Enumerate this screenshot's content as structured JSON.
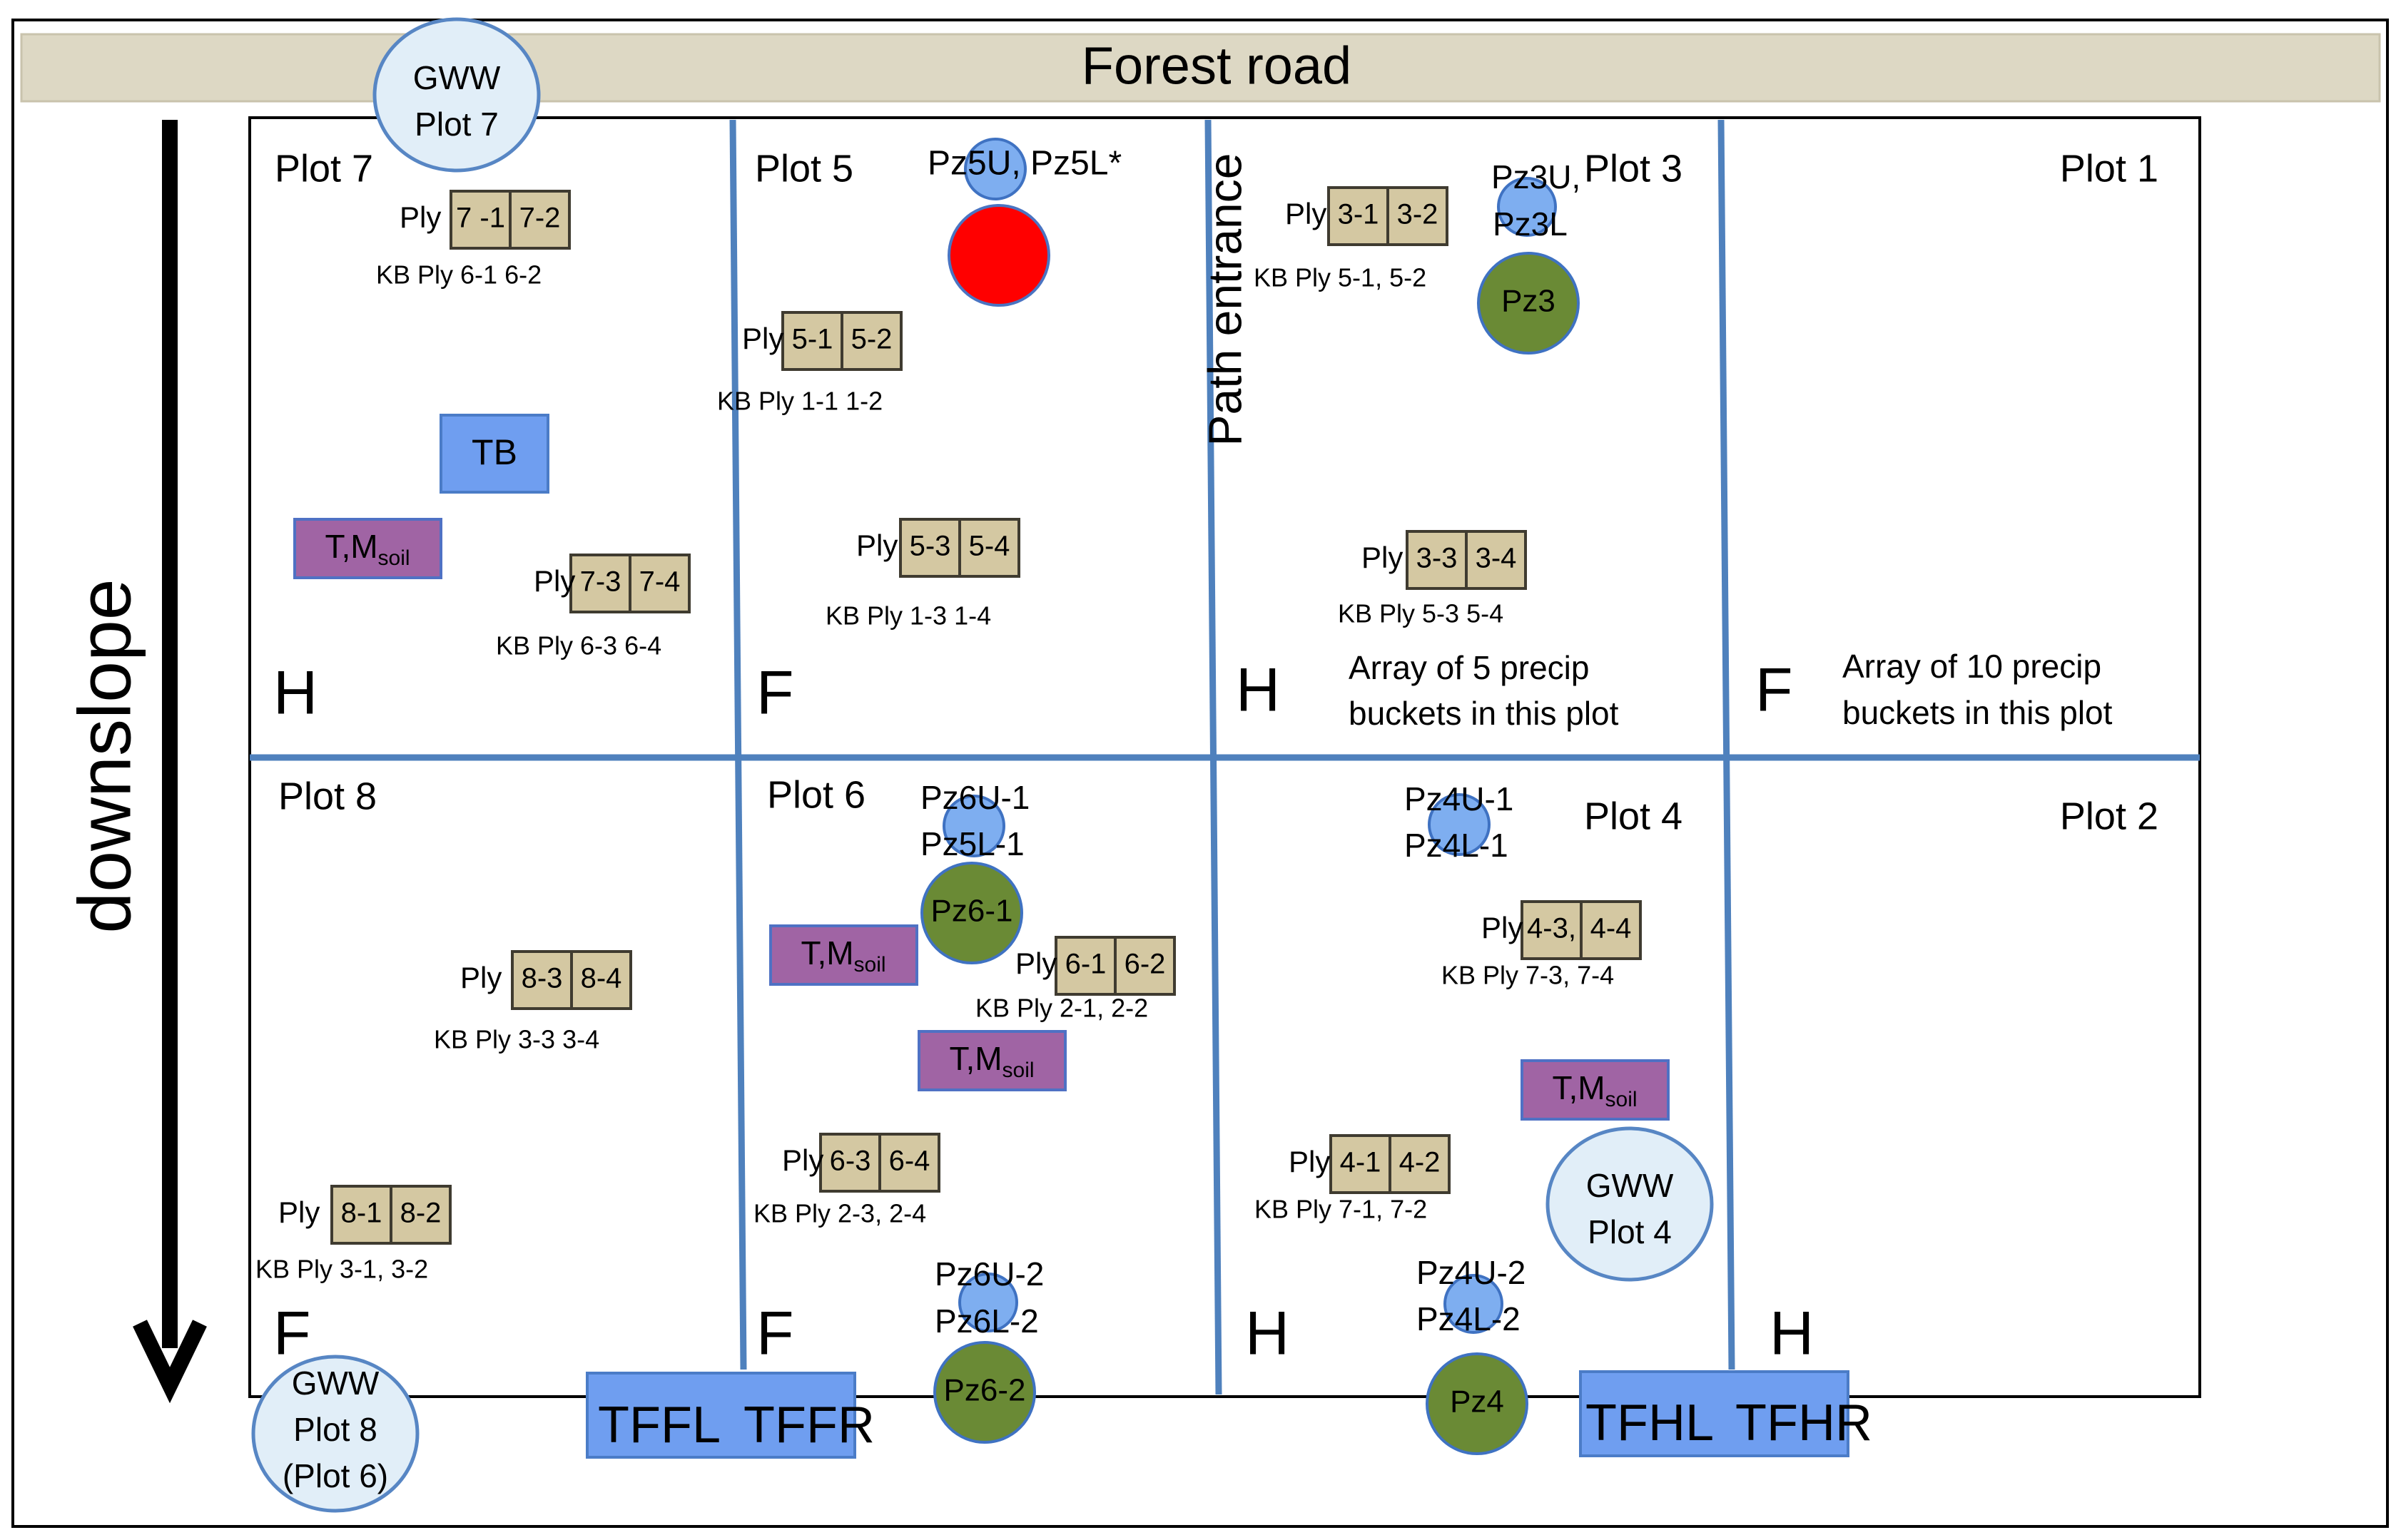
{
  "road": {
    "label": "Forest road"
  },
  "downslope_label": "downslope",
  "path_entrance_label": "Path entrance",
  "plots": {
    "plot7": {
      "title": "Plot 7",
      "type": "H"
    },
    "plot5": {
      "title": "Plot 5",
      "type": "F"
    },
    "plot3": {
      "title": "Plot 3",
      "type": "H",
      "note_line1": "Array of 5 precip",
      "note_line2": "buckets in this plot"
    },
    "plot1": {
      "title": "Plot 1",
      "type": "F",
      "note_line1": "Array of 10 precip",
      "note_line2": "buckets in this plot"
    },
    "plot8": {
      "title": "Plot 8",
      "type": "F"
    },
    "plot6": {
      "title": "Plot 6",
      "type": "F"
    },
    "plot4": {
      "title": "Plot 4",
      "type": "H"
    },
    "plot2": {
      "title": "Plot 2",
      "type": "H"
    }
  },
  "lysimeter_prefix": "Ply",
  "lysimeters": [
    {
      "cells": [
        "7 -1",
        "7-2"
      ],
      "kb": "KB Ply 6-1 6-2"
    },
    {
      "cells": [
        "7-3",
        "7-4"
      ],
      "kb": "KB Ply 6-3 6-4"
    },
    {
      "cells": [
        "5-1",
        "5-2"
      ],
      "kb": "KB Ply 1-1 1-2"
    },
    {
      "cells": [
        "5-3",
        "5-4"
      ],
      "kb": "KB Ply 1-3 1-4"
    },
    {
      "cells": [
        "3-1",
        "3-2"
      ],
      "kb": "KB Ply 5-1, 5-2"
    },
    {
      "cells": [
        "3-3",
        "3-4"
      ],
      "kb": "KB Ply 5-3 5-4"
    },
    {
      "cells": [
        "8-3",
        "8-4"
      ],
      "kb": "KB Ply 3-3  3-4"
    },
    {
      "cells": [
        "8-1",
        "8-2"
      ],
      "kb": "KB Ply 3-1, 3-2"
    },
    {
      "cells": [
        "6-1",
        "6-2"
      ],
      "kb": "KB Ply 2-1, 2-2"
    },
    {
      "cells": [
        "6-3",
        "6-4"
      ],
      "kb": "KB Ply 2-3, 2-4"
    },
    {
      "cells": [
        "4-3,",
        "4-4"
      ],
      "kb": "KB Ply 7-3, 7-4"
    },
    {
      "cells": [
        "4-1",
        "4-2"
      ],
      "kb": "KB Ply 7-1, 7-2"
    }
  ],
  "piezometers": {
    "pz5": {
      "label": "Pz5U, Pz5L*"
    },
    "pz3": {
      "line1": "Pz3U,",
      "line2": "Pz3L",
      "big": "Pz3"
    },
    "pz6_1": {
      "line1": "Pz6U-1",
      "line2": "Pz5L-1",
      "big": "Pz6-1"
    },
    "pz4_1": {
      "line1": "Pz4U-1",
      "line2": "Pz4L-1"
    },
    "pz6_2": {
      "line1": "Pz6U-2",
      "line2": "Pz6L-2",
      "big": "Pz6-2"
    },
    "pz4_2": {
      "line1": "Pz4U-2",
      "line2": "Pz4L-2",
      "big": "Pz4"
    }
  },
  "wells": {
    "gww7": {
      "line1": "GWW",
      "line2": "Plot 7"
    },
    "gww4": {
      "line1": "GWW",
      "line2": "Plot 4"
    },
    "gww8": {
      "line1": "GWW",
      "line2": "Plot 8",
      "line3": "(Plot 6)"
    }
  },
  "soil_sensor": {
    "main": "T,M",
    "sub": "soil"
  },
  "tipping_bucket": "TB",
  "flumes": {
    "forest": {
      "left": "TFFL",
      "right": "TFFR"
    },
    "harvest": {
      "left": "TFHL",
      "right": "TFHR"
    }
  },
  "colors": {
    "road": "#ddd8c4",
    "lysimeter": "#d4c8a2",
    "piezometer_small": "#7eaef0",
    "piezometer_large": "#6a8a35",
    "red_marker": "#ff0000",
    "soil_sensor": "#a064a4",
    "flume": "#6f9ef0",
    "divider": "#4f81bd",
    "well": "#e1eef8"
  }
}
